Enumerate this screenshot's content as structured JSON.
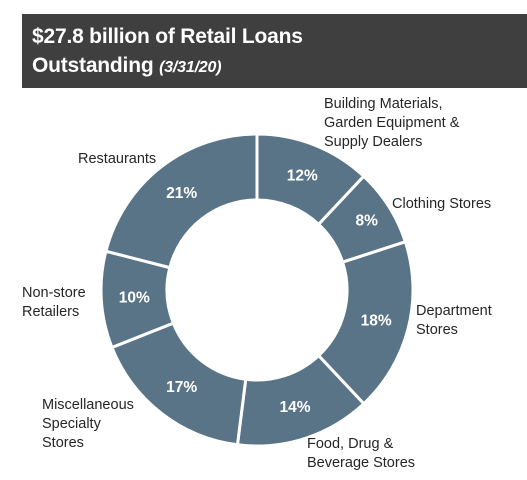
{
  "header": {
    "title_line1": "$27.8 billion of Retail Loans",
    "title_line2": "Outstanding",
    "title_date": "(3/31/20)"
  },
  "colors": {
    "slice": "#5a7487",
    "header_bg": "#3f3f3f"
  },
  "chart_data": {
    "type": "pie",
    "title": "$27.8 billion of Retail Loans Outstanding (3/31/20)",
    "donut": true,
    "slices": [
      {
        "label_lines": [
          "Building Materials,",
          "Garden Equipment &",
          "Supply Dealers"
        ],
        "value": 12,
        "display": "12%"
      },
      {
        "label_lines": [
          "Clothing Stores"
        ],
        "value": 8,
        "display": "8%"
      },
      {
        "label_lines": [
          "Department",
          "Stores"
        ],
        "value": 18,
        "display": "18%"
      },
      {
        "label_lines": [
          "Food, Drug &",
          "Beverage Stores"
        ],
        "value": 14,
        "display": "14%"
      },
      {
        "label_lines": [
          "Miscellaneous",
          "Specialty",
          "Stores"
        ],
        "value": 17,
        "display": "17%"
      },
      {
        "label_lines": [
          "Non-store",
          "Retailers"
        ],
        "value": 10,
        "display": "10%"
      },
      {
        "label_lines": [
          "Restaurants"
        ],
        "value": 21,
        "display": "21%"
      }
    ]
  }
}
